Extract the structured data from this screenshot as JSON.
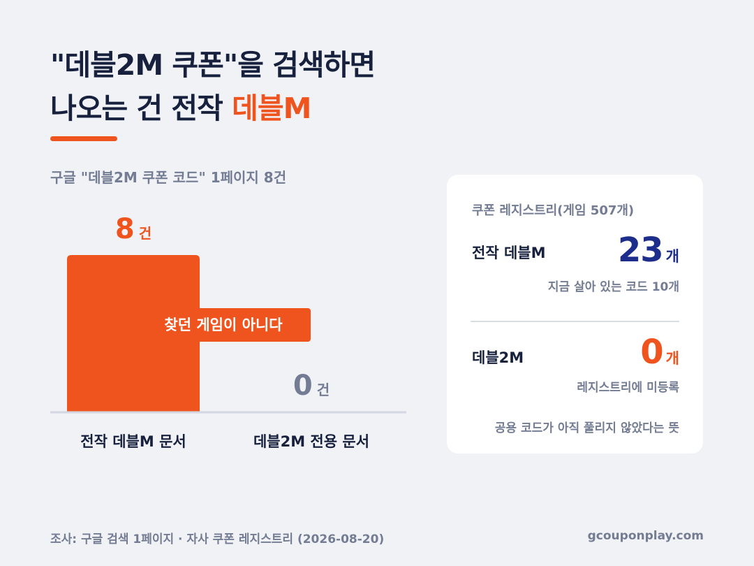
{
  "headline": {
    "line1": "\"데블2M 쿠폰\"을 검색하면",
    "line2_prefix": "나오는 건 전작 ",
    "line2_accent": "데블M"
  },
  "chart_data": {
    "type": "bar",
    "title": "구글 \"데블2M 쿠폰 코드\" 1페이지 8건",
    "categories": [
      "전작 데블M 문서",
      "데블2M 전용 문서"
    ],
    "values": [
      8,
      0
    ],
    "value_labels": [
      "8",
      "0"
    ],
    "unit": "건",
    "ylim": [
      0,
      8
    ],
    "colors": [
      "#f0541e",
      "#737c93"
    ],
    "annotation": "찾던 게임이 아니다",
    "grid": false
  },
  "card": {
    "title": "쿠폰 레지스트리(게임 507개)",
    "unit": "개",
    "rows": [
      {
        "label": "전작 데블M",
        "value": "23",
        "note": "지금 살아 있는 코드 10개",
        "color": "#1c2d8c"
      },
      {
        "label": "데블2M",
        "value": "0",
        "note": "레지스트리에 미등록",
        "color": "#f0541e"
      }
    ],
    "footer": "공용 코드가 아직 풀리지 않았다는 뜻"
  },
  "footer": {
    "source": "조사: 구글 검색 1페이지 · 자사 쿠폰 레지스트리 (2026-08-20)",
    "site": "gcouponplay.com"
  },
  "colors": {
    "accent": "#f0541e",
    "navy": "#17213d",
    "muted": "#737c93",
    "background": "#f1f2f6"
  }
}
